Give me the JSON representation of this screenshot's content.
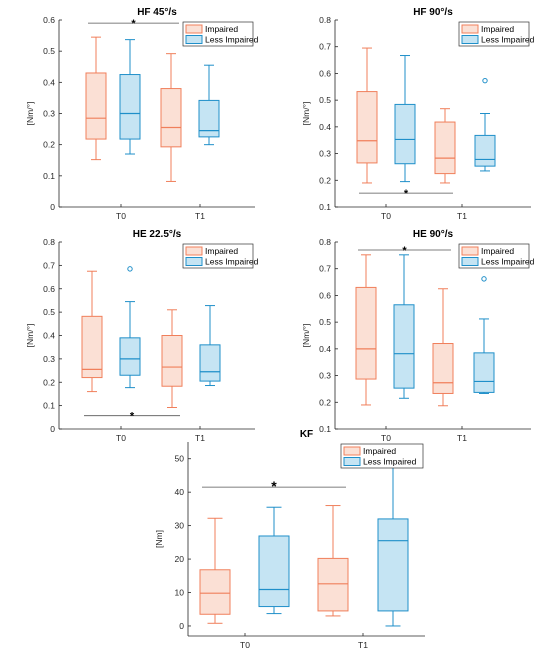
{
  "colors": {
    "impaired_stroke": "#f07f5b",
    "impaired_fill": "#fbe0d5",
    "less_stroke": "#1f8fc9",
    "less_fill": "#c5e4f3",
    "axis": "#262626",
    "sig_line": "#555555"
  },
  "chart_data": [
    {
      "type": "box",
      "title": "HF 45°/s",
      "ylabel": "[Nm/°]",
      "ylim": [
        0,
        0.6
      ],
      "yticks": [
        0,
        0.1,
        0.2,
        0.3,
        0.4,
        0.5,
        0.6
      ],
      "ytick_labels": [
        "0",
        "0.1",
        "0.2",
        "0.3",
        "0.4",
        "0.5",
        "0.6"
      ],
      "categories": [
        "T0",
        "T1"
      ],
      "legend": [
        "Impaired",
        "Less Impaired"
      ],
      "legend_position": "top-right",
      "series": [
        {
          "name": "Impaired",
          "boxes": [
            {
              "min": 0.152,
              "q1": 0.218,
              "median": 0.285,
              "q3": 0.43,
              "max": 0.545,
              "outliers": []
            },
            {
              "min": 0.082,
              "q1": 0.193,
              "median": 0.255,
              "q3": 0.38,
              "max": 0.492,
              "outliers": []
            }
          ]
        },
        {
          "name": "Less Impaired",
          "boxes": [
            {
              "min": 0.17,
              "q1": 0.218,
              "median": 0.3,
              "q3": 0.425,
              "max": 0.537,
              "outliers": []
            },
            {
              "min": 0.2,
              "q1": 0.225,
              "median": 0.245,
              "q3": 0.342,
              "max": 0.455,
              "outliers": []
            }
          ]
        }
      ],
      "significance": {
        "label": "*",
        "y": 0.59,
        "from": [
          0,
          "Impaired"
        ],
        "to": [
          1,
          "Impaired"
        ]
      }
    },
    {
      "type": "box",
      "title": "HF 90°/s",
      "ylabel": "[Nm/°]",
      "ylim": [
        0.1,
        0.8
      ],
      "yticks": [
        0.1,
        0.2,
        0.3,
        0.4,
        0.5,
        0.6,
        0.7,
        0.8
      ],
      "ytick_labels": [
        "0.1",
        "0.2",
        "0.3",
        "0.4",
        "0.5",
        "0.6",
        "0.7",
        "0.8"
      ],
      "categories": [
        "T0",
        "T1"
      ],
      "legend": [
        "Impaired",
        "Less Impaired"
      ],
      "legend_position": "top-right",
      "series": [
        {
          "name": "Impaired",
          "boxes": [
            {
              "min": 0.19,
              "q1": 0.265,
              "median": 0.348,
              "q3": 0.532,
              "max": 0.695,
              "outliers": []
            },
            {
              "min": 0.19,
              "q1": 0.225,
              "median": 0.283,
              "q3": 0.418,
              "max": 0.468,
              "outliers": []
            }
          ]
        },
        {
          "name": "Less Impaired",
          "boxes": [
            {
              "min": 0.195,
              "q1": 0.262,
              "median": 0.353,
              "q3": 0.484,
              "max": 0.667,
              "outliers": []
            },
            {
              "min": 0.235,
              "q1": 0.253,
              "median": 0.278,
              "q3": 0.368,
              "max": 0.45,
              "outliers": [
                0.573
              ]
            }
          ]
        }
      ],
      "significance": {
        "label": "*",
        "y": 0.152,
        "from": [
          0,
          "Impaired"
        ],
        "to": [
          1,
          "Impaired"
        ]
      }
    },
    {
      "type": "box",
      "title": "HE 22.5°/s",
      "ylabel": "[Nm/°]",
      "ylim": [
        0,
        0.8
      ],
      "yticks": [
        0,
        0.1,
        0.2,
        0.3,
        0.4,
        0.5,
        0.6,
        0.7,
        0.8
      ],
      "ytick_labels": [
        "0",
        "0.1",
        "0.2",
        "0.3",
        "0.4",
        "0.5",
        "0.6",
        "0.7",
        "0.8"
      ],
      "categories": [
        "T0",
        "T1"
      ],
      "legend": [
        "Impaired",
        "Less Impaired"
      ],
      "legend_position": "top-right",
      "series": [
        {
          "name": "Impaired",
          "boxes": [
            {
              "min": 0.16,
              "q1": 0.22,
              "median": 0.255,
              "q3": 0.482,
              "max": 0.675,
              "outliers": []
            },
            {
              "min": 0.092,
              "q1": 0.183,
              "median": 0.265,
              "q3": 0.4,
              "max": 0.51,
              "outliers": []
            }
          ]
        },
        {
          "name": "Less Impaired",
          "boxes": [
            {
              "min": 0.177,
              "q1": 0.23,
              "median": 0.3,
              "q3": 0.39,
              "max": 0.545,
              "outliers": [
                0.685
              ]
            },
            {
              "min": 0.186,
              "q1": 0.205,
              "median": 0.245,
              "q3": 0.36,
              "max": 0.528,
              "outliers": []
            }
          ]
        }
      ],
      "significance": {
        "label": "*",
        "y": 0.057,
        "from": [
          0,
          "Impaired"
        ],
        "to": [
          1,
          "Impaired"
        ]
      }
    },
    {
      "type": "box",
      "title": "HE 90°/s",
      "ylabel": "[Nm/°]",
      "ylim": [
        0.1,
        0.8
      ],
      "yticks": [
        0.1,
        0.2,
        0.3,
        0.4,
        0.5,
        0.6,
        0.7,
        0.8
      ],
      "ytick_labels": [
        "0.1",
        "0.2",
        "0.3",
        "0.4",
        "0.5",
        "0.6",
        "0.7",
        "0.8"
      ],
      "categories": [
        "T0",
        "T1"
      ],
      "legend": [
        "Impaired",
        "Less Impaired"
      ],
      "legend_position": "top-right",
      "series": [
        {
          "name": "Impaired",
          "boxes": [
            {
              "min": 0.19,
              "q1": 0.287,
              "median": 0.4,
              "q3": 0.63,
              "max": 0.752,
              "outliers": []
            },
            {
              "min": 0.187,
              "q1": 0.233,
              "median": 0.273,
              "q3": 0.42,
              "max": 0.625,
              "outliers": []
            }
          ]
        },
        {
          "name": "Less Impaired",
          "boxes": [
            {
              "min": 0.215,
              "q1": 0.253,
              "median": 0.382,
              "q3": 0.565,
              "max": 0.752,
              "outliers": []
            },
            {
              "min": 0.233,
              "q1": 0.237,
              "median": 0.278,
              "q3": 0.385,
              "max": 0.512,
              "outliers": [
                0.662
              ]
            }
          ]
        }
      ],
      "significance": {
        "label": "*",
        "y": 0.77,
        "from": [
          0,
          "Impaired"
        ],
        "to": [
          1,
          "Impaired"
        ]
      }
    },
    {
      "type": "box",
      "title": "KF",
      "ylabel": "[Nm]",
      "ylim": [
        -3,
        55
      ],
      "yticks": [
        0,
        10,
        20,
        30,
        40,
        50
      ],
      "ytick_labels": [
        "0",
        "10",
        "20",
        "30",
        "40",
        "50"
      ],
      "categories": [
        "T0",
        "T1"
      ],
      "legend": [
        "Impaired",
        "Less Impaired"
      ],
      "legend_position": "top-right",
      "series": [
        {
          "name": "Impaired",
          "boxes": [
            {
              "min": 0.8,
              "q1": 3.5,
              "median": 9.8,
              "q3": 16.8,
              "max": 32.2,
              "outliers": []
            },
            {
              "min": 3.0,
              "q1": 4.5,
              "median": 12.6,
              "q3": 20.2,
              "max": 36.0,
              "outliers": []
            }
          ]
        },
        {
          "name": "Less Impaired",
          "boxes": [
            {
              "min": 3.7,
              "q1": 5.8,
              "median": 10.9,
              "q3": 26.9,
              "max": 35.5,
              "outliers": []
            },
            {
              "min": 0.0,
              "q1": 4.5,
              "median": 25.5,
              "q3": 32.0,
              "max": 52.0,
              "outliers": []
            }
          ]
        }
      ],
      "significance": {
        "label": "*",
        "y": 41.5,
        "from": [
          0,
          "Impaired"
        ],
        "to": [
          1,
          "Impaired"
        ]
      }
    }
  ]
}
